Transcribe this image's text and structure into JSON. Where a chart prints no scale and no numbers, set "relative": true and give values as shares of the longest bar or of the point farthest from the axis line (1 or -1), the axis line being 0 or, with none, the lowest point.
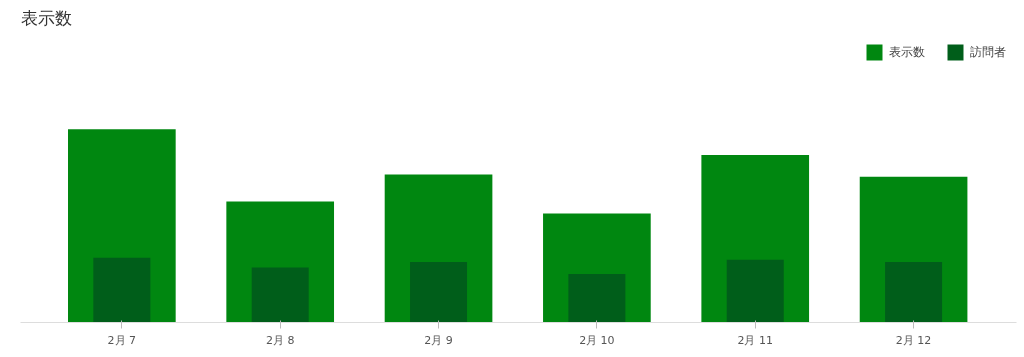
{
  "chart_data": {
    "type": "bar",
    "title": "表示数",
    "relative": true,
    "legend": "top right",
    "categories": [
      "2月 7",
      "2月 8",
      "2月 9",
      "2月 10",
      "2月 11",
      "2月 12"
    ],
    "series": [
      {
        "name": "表示数",
        "color": "#008710",
        "values": [
          1,
          0.626,
          0.765,
          0.564,
          0.866,
          0.754
        ]
      },
      {
        "name": "訪問者",
        "color": "#005e1a",
        "values": [
          0.335,
          0.285,
          0.313,
          0.251,
          0.324,
          0.313
        ]
      }
    ]
  }
}
